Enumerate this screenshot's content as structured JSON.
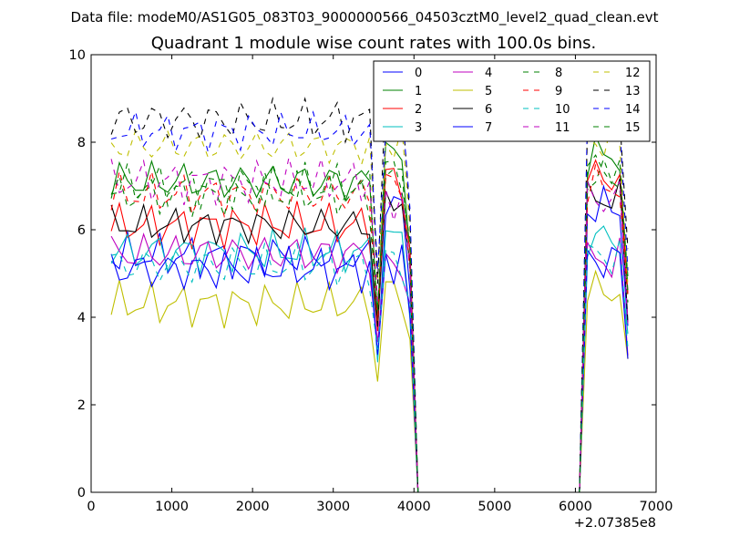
{
  "chart_data": {
    "type": "line",
    "suptitle": "Data file: modeM0/AS1G05_083T03_9000000566_04503cztM0_level2_quad_clean.evt",
    "title": "Quadrant 1 module wise count rates with 100.0s bins.",
    "xlabel": "",
    "ylabel": "",
    "xlim": [
      0,
      7000
    ],
    "ylim": [
      0,
      10
    ],
    "x_offset_label": "+2.07385e8",
    "xticks": [
      0,
      1000,
      2000,
      3000,
      4000,
      5000,
      6000,
      7000
    ],
    "xtick_labels": [
      "0",
      "1000",
      "2000",
      "3000",
      "4000",
      "5000",
      "6000",
      "7000"
    ],
    "yticks": [
      0,
      2,
      4,
      6,
      8,
      10
    ],
    "ytick_labels": [
      "0",
      "2",
      "4",
      "6",
      "8",
      "10"
    ],
    "grid": false,
    "legend_position": "upper-right",
    "legend_columns": 4,
    "segments": [
      {
        "x_start": 250,
        "x_end": 3550,
        "step": 100
      },
      {
        "x_start": 3650,
        "x_end": 3950,
        "step": 100
      },
      {
        "x_start": 6150,
        "x_end": 6650,
        "step": 100
      }
    ],
    "dips": [
      {
        "x": 3550,
        "factor": 0.6
      },
      {
        "x": 3950,
        "factor": 0.75
      },
      {
        "x": 6650,
        "factor": 0.6
      }
    ],
    "zero_range": [
      4050,
      6050
    ],
    "series": [
      {
        "name": "0",
        "color": "#0000ff",
        "style": "solid",
        "base": 5.4,
        "amp": 0.35,
        "phase": 0.1,
        "high": 6.5
      },
      {
        "name": "1",
        "color": "#008000",
        "style": "solid",
        "base": 7.1,
        "amp": 0.35,
        "phase": 1.3,
        "high": 7.7
      },
      {
        "name": "2",
        "color": "#ff0000",
        "style": "solid",
        "base": 6.1,
        "amp": 0.35,
        "phase": 2.1,
        "high": 7.2
      },
      {
        "name": "3",
        "color": "#00bfbf",
        "style": "solid",
        "base": 5.5,
        "amp": 0.35,
        "phase": 0.7,
        "high": 5.8
      },
      {
        "name": "4",
        "color": "#bf00bf",
        "style": "solid",
        "base": 5.45,
        "amp": 0.35,
        "phase": 2.9,
        "high": 5.3
      },
      {
        "name": "5",
        "color": "#bfbf00",
        "style": "solid",
        "base": 4.3,
        "amp": 0.35,
        "phase": 1.9,
        "high": 4.6
      },
      {
        "name": "6",
        "color": "#000000",
        "style": "solid",
        "base": 6.1,
        "amp": 0.3,
        "phase": 3.3,
        "high": 6.7
      },
      {
        "name": "7",
        "color": "#0000ff",
        "style": "solid",
        "base": 5.1,
        "amp": 0.35,
        "phase": 4.1,
        "high": 5.3
      },
      {
        "name": "8",
        "color": "#008000",
        "style": "dashed",
        "base": 7.0,
        "amp": 0.35,
        "phase": 0.4,
        "high": 7.2
      },
      {
        "name": "9",
        "color": "#ff0000",
        "style": "dashed",
        "base": 6.8,
        "amp": 0.35,
        "phase": 1.6,
        "high": 7.0
      },
      {
        "name": "10",
        "color": "#00bfbf",
        "style": "dashed",
        "base": 5.2,
        "amp": 0.35,
        "phase": 2.6,
        "high": 5.4
      },
      {
        "name": "11",
        "color": "#bf00bf",
        "style": "dashed",
        "base": 7.1,
        "amp": 0.35,
        "phase": 3.7,
        "high": 6.7
      },
      {
        "name": "12",
        "color": "#bfbf00",
        "style": "dashed",
        "base": 7.9,
        "amp": 0.3,
        "phase": 4.5,
        "high": 8.0
      },
      {
        "name": "13",
        "color": "#000000",
        "style": "dashed",
        "base": 8.5,
        "amp": 0.35,
        "phase": 0.9,
        "high": 8.9
      },
      {
        "name": "14",
        "color": "#0000ff",
        "style": "dashed",
        "base": 8.25,
        "amp": 0.3,
        "phase": 5.2,
        "high": 8.6
      },
      {
        "name": "15",
        "color": "#008000",
        "style": "dashed",
        "base": 6.8,
        "amp": 0.35,
        "phase": 2.3,
        "high": 7.4
      }
    ]
  }
}
